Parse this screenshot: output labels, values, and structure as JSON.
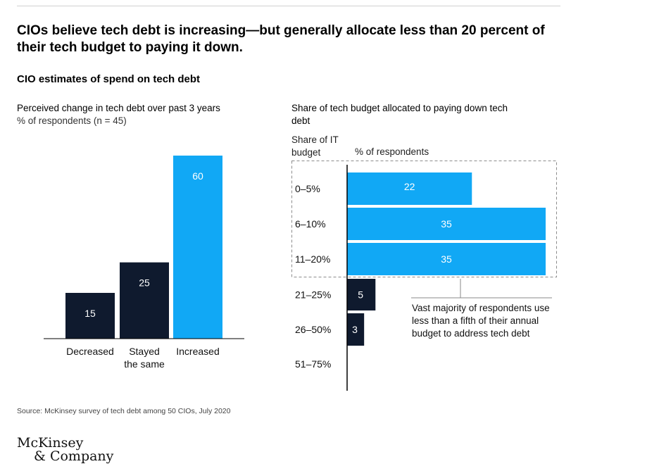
{
  "title": "CIOs believe tech debt is increasing—but generally allocate less than 20 percent of their tech budget to paying it down.",
  "subtitle": "CIO estimates of spend on tech debt",
  "colors": {
    "dark": "#0f1a2e",
    "blue": "#11a8f5",
    "axis": "#000000",
    "dashed": "#8c8c8c"
  },
  "chart_data": [
    {
      "type": "bar",
      "title": "Perceived change in tech debt over past 3 years",
      "unit_label": "% of respondents (n = 45)",
      "categories": [
        "Decreased",
        "Stayed the same",
        "Increased"
      ],
      "category_lines": [
        [
          "Decreased"
        ],
        [
          "Stayed",
          "the same"
        ],
        [
          "Increased"
        ]
      ],
      "values": [
        15,
        25,
        60
      ],
      "colors": [
        "#0f1a2e",
        "#0f1a2e",
        "#11a8f5"
      ],
      "ylim": [
        0,
        60
      ]
    },
    {
      "type": "bar",
      "orientation": "horizontal",
      "title": "Share of tech budget allocated to paying down tech debt",
      "category_axis_label": "Share of IT budget",
      "value_axis_label": "% of respondents",
      "categories": [
        "0–5%",
        "6–10%",
        "11–20%",
        "21–25%",
        "26–50%",
        "51–75%"
      ],
      "values": [
        22,
        35,
        35,
        5,
        3,
        0
      ],
      "colors": [
        "#11a8f5",
        "#11a8f5",
        "#11a8f5",
        "#0f1a2e",
        "#0f1a2e",
        "#0f1a2e"
      ],
      "xlim": [
        0,
        35
      ],
      "annotation": "Vast majority of respondents use less than a fifth of their annual budget to address tech debt"
    }
  ],
  "labels": {
    "left_title": "Perceived change in tech debt over past 3 years",
    "left_unit": "% of respondents (n = 45)",
    "right_title": "Share of tech budget allocated to paying down tech debt",
    "right_col_a": "Share of IT budget",
    "right_col_b": "% of respondents",
    "note": "Vast majority of respondents use less than a fifth of their annual budget to address tech debt"
  },
  "source": "Source: McKinsey survey of tech debt among 50 CIOs, July 2020",
  "logo": {
    "line1": "McKinsey",
    "line2": "& Company"
  }
}
